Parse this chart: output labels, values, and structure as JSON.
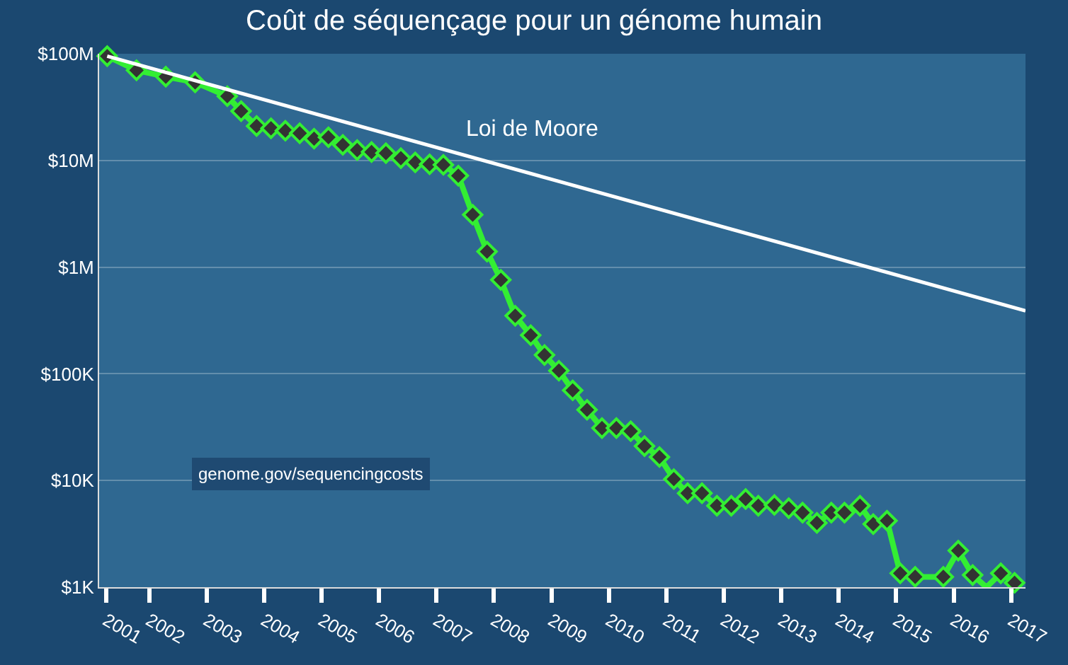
{
  "chart_data": {
    "type": "line",
    "title": "Coût de séquençage pour un génome humain",
    "log": "y",
    "grid": "y",
    "marker": "diamond",
    "line_style": "solid",
    "legend": false,
    "xlim": [
      2001.13,
      2017.25
    ],
    "ylim": [
      1000,
      100000000
    ],
    "xticks": [
      {
        "value": 2001.25,
        "label": "2001"
      },
      2002,
      2003,
      2004,
      2005,
      2006,
      2007,
      2008,
      2009,
      2010,
      2011,
      2012,
      2013,
      2014,
      2015,
      2016,
      2017
    ],
    "yticks": [
      {
        "value": 1000,
        "label": "$1K"
      },
      {
        "value": 10000,
        "label": "$10K"
      },
      {
        "value": 100000,
        "label": "$100K"
      },
      {
        "value": 1000000,
        "label": "$1M"
      },
      {
        "value": 10000000,
        "label": "$10M"
      },
      {
        "value": 100000000,
        "label": "$100M"
      }
    ],
    "series": [
      {
        "color": "#33ee33",
        "x": [
          2001.27,
          2001.78,
          2002.29,
          2002.8,
          2003.36,
          2003.6,
          2003.87,
          2004.12,
          2004.37,
          2004.62,
          2004.87,
          2005.12,
          2005.37,
          2005.62,
          2005.87,
          2006.12,
          2006.38,
          2006.63,
          2006.88,
          2007.12,
          2007.38,
          2007.63,
          2007.88,
          2008.12,
          2008.37,
          2008.64,
          2008.88,
          2009.13,
          2009.37,
          2009.62,
          2009.88,
          2010.13,
          2010.38,
          2010.62,
          2010.88,
          2011.13,
          2011.37,
          2011.62,
          2011.88,
          2012.13,
          2012.38,
          2012.6,
          2012.88,
          2013.13,
          2013.37,
          2013.62,
          2013.87,
          2014.1,
          2014.37,
          2014.6,
          2014.84,
          2015.07,
          2015.33,
          2015.82,
          2016.08,
          2016.33,
          2016.57,
          2016.82,
          2017.06
        ],
        "values": [
          95000000,
          70000000,
          61000000,
          54000000,
          40000000,
          29000000,
          21000000,
          20000000,
          19000000,
          18000000,
          16000000,
          16500000,
          14000000,
          12500000,
          12000000,
          11700000,
          10500000,
          9600000,
          9200000,
          9100000,
          7200000,
          3100000,
          1400000,
          760000,
          350000,
          230000,
          150000,
          107000,
          70000,
          46000,
          31000,
          31000,
          29000,
          21000,
          16600,
          10300,
          7600,
          7600,
          5800,
          5800,
          6700,
          5800,
          5900,
          5500,
          5000,
          4000,
          5000,
          5000,
          5800,
          3900,
          4200,
          1350,
          1250,
          1250,
          2200,
          1300,
          1000,
          1350,
          1100
        ]
      },
      {
        "name": "Loi de Moore",
        "color": "#ffffff",
        "marker": "none",
        "x": [
          2001.27,
          2017.25
        ],
        "values": [
          95000000,
          390000
        ]
      }
    ],
    "annotations": [
      "genome.gov/sequencingcosts"
    ]
  }
}
